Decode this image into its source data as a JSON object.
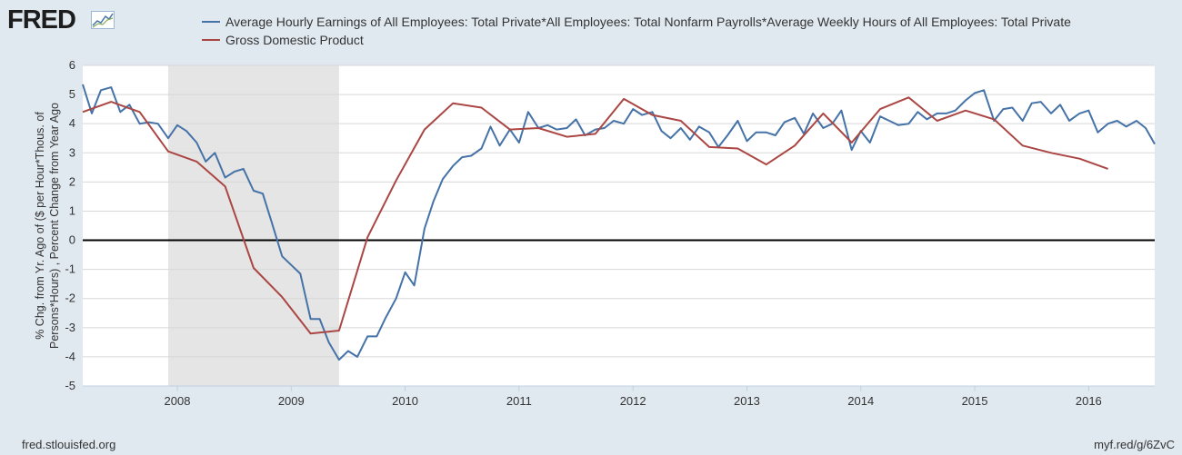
{
  "header": {
    "logo_text": "FRED",
    "logo_icon": "fred-graph-icon"
  },
  "footer": {
    "left": "fred.stlouisfed.org",
    "right": "myf.red/g/6ZvC"
  },
  "colors": {
    "background": "#e1e9f0",
    "plot_bg": "#ffffff",
    "recession": "#e5e5e5",
    "series1": "#4572a7",
    "series2": "#aa4643",
    "zero_line": "#000000"
  },
  "chart_data": {
    "type": "line",
    "title": "",
    "xlabel": "",
    "ylabel": "% Chg. from Yr. Ago of ($ per Hour*Thous. of Persons*Hours) , Percent Change from Year Ago",
    "ylabel_lines": [
      "% Chg. from Yr. Ago of ($ per Hour*Thous. of",
      "Persons*Hours) , Percent Change from Year Ago"
    ],
    "xlim": [
      2007.17,
      2016.58
    ],
    "ylim": [
      -5,
      6
    ],
    "yticks": [
      -5,
      -4,
      -3,
      -2,
      -1,
      0,
      1,
      2,
      3,
      4,
      5,
      6
    ],
    "xticks": [
      2008,
      2009,
      2010,
      2011,
      2012,
      2013,
      2014,
      2015,
      2016
    ],
    "grid": true,
    "legend_position": "top",
    "recessions": [
      [
        2007.92,
        2009.42
      ]
    ],
    "zero_line": true,
    "series": [
      {
        "name": "Average Hourly Earnings of All Employees: Total Private*All Employees: Total Nonfarm Payrolls*Average Weekly Hours of All Employees: Total Private",
        "color": "#4572a7",
        "x": [
          2007.17,
          2007.25,
          2007.33,
          2007.42,
          2007.5,
          2007.58,
          2007.67,
          2007.75,
          2007.83,
          2007.92,
          2008.0,
          2008.08,
          2008.17,
          2008.25,
          2008.33,
          2008.42,
          2008.5,
          2008.58,
          2008.67,
          2008.75,
          2008.83,
          2008.92,
          2009.0,
          2009.08,
          2009.17,
          2009.25,
          2009.33,
          2009.42,
          2009.5,
          2009.58,
          2009.67,
          2009.75,
          2009.83,
          2009.92,
          2010.0,
          2010.08,
          2010.17,
          2010.25,
          2010.33,
          2010.42,
          2010.5,
          2010.58,
          2010.67,
          2010.75,
          2010.83,
          2010.92,
          2011.0,
          2011.08,
          2011.17,
          2011.25,
          2011.33,
          2011.42,
          2011.5,
          2011.58,
          2011.67,
          2011.75,
          2011.83,
          2011.92,
          2012.0,
          2012.08,
          2012.17,
          2012.25,
          2012.33,
          2012.42,
          2012.5,
          2012.58,
          2012.67,
          2012.75,
          2012.83,
          2012.92,
          2013.0,
          2013.08,
          2013.17,
          2013.25,
          2013.33,
          2013.42,
          2013.5,
          2013.58,
          2013.67,
          2013.75,
          2013.83,
          2013.92,
          2014.0,
          2014.08,
          2014.17,
          2014.25,
          2014.33,
          2014.42,
          2014.5,
          2014.58,
          2014.67,
          2014.75,
          2014.83,
          2014.92,
          2015.0,
          2015.08,
          2015.17,
          2015.25,
          2015.33,
          2015.42,
          2015.5,
          2015.58,
          2015.67,
          2015.75,
          2015.83,
          2015.92,
          2016.0,
          2016.08,
          2016.17,
          2016.25,
          2016.33,
          2016.42,
          2016.5,
          2016.58
        ],
        "values": [
          5.35,
          4.35,
          5.15,
          5.25,
          4.4,
          4.65,
          4.0,
          4.05,
          4.0,
          3.5,
          3.95,
          3.75,
          3.35,
          2.7,
          3.0,
          2.15,
          2.35,
          2.45,
          1.7,
          1.6,
          0.6,
          -0.55,
          -0.85,
          -1.15,
          -2.7,
          -2.7,
          -3.5,
          -4.1,
          -3.8,
          -4.0,
          -3.3,
          -3.3,
          -2.65,
          -2.0,
          -1.1,
          -1.55,
          0.4,
          1.35,
          2.1,
          2.55,
          2.85,
          2.9,
          3.15,
          3.9,
          3.25,
          3.8,
          3.35,
          4.4,
          3.85,
          3.95,
          3.8,
          3.85,
          4.15,
          3.6,
          3.8,
          3.85,
          4.1,
          4.0,
          4.5,
          4.3,
          4.4,
          3.75,
          3.5,
          3.85,
          3.45,
          3.9,
          3.7,
          3.2,
          3.6,
          4.1,
          3.4,
          3.7,
          3.7,
          3.6,
          4.05,
          4.2,
          3.65,
          4.35,
          3.85,
          4.0,
          4.45,
          3.1,
          3.75,
          3.35,
          4.25,
          4.1,
          3.95,
          4.0,
          4.4,
          4.15,
          4.35,
          4.35,
          4.45,
          4.8,
          5.05,
          5.15,
          4.1,
          4.5,
          4.55,
          4.1,
          4.7,
          4.75,
          4.35,
          4.65,
          4.1,
          4.35,
          4.45,
          3.7,
          4.0,
          4.1,
          3.9,
          4.1,
          3.85,
          3.3
        ]
      },
      {
        "name": "Gross Domestic Product",
        "color": "#aa4643",
        "x": [
          2007.17,
          2007.42,
          2007.67,
          2007.92,
          2008.17,
          2008.42,
          2008.67,
          2008.92,
          2009.17,
          2009.42,
          2009.67,
          2009.92,
          2010.17,
          2010.42,
          2010.67,
          2010.92,
          2011.17,
          2011.42,
          2011.67,
          2011.92,
          2012.17,
          2012.42,
          2012.67,
          2012.92,
          2013.17,
          2013.42,
          2013.67,
          2013.92,
          2014.17,
          2014.42,
          2014.67,
          2014.92,
          2015.17,
          2015.42,
          2015.67,
          2015.92,
          2016.17
        ],
        "values": [
          4.4,
          4.75,
          4.4,
          3.05,
          2.7,
          1.85,
          -0.95,
          -1.95,
          -3.2,
          -3.1,
          0.1,
          2.05,
          3.8,
          4.7,
          4.55,
          3.8,
          3.85,
          3.55,
          3.65,
          4.85,
          4.3,
          4.1,
          3.2,
          3.15,
          2.6,
          3.25,
          4.35,
          3.35,
          4.5,
          4.9,
          4.1,
          4.45,
          4.15,
          3.25,
          3.0,
          2.8,
          2.45
        ]
      }
    ]
  }
}
